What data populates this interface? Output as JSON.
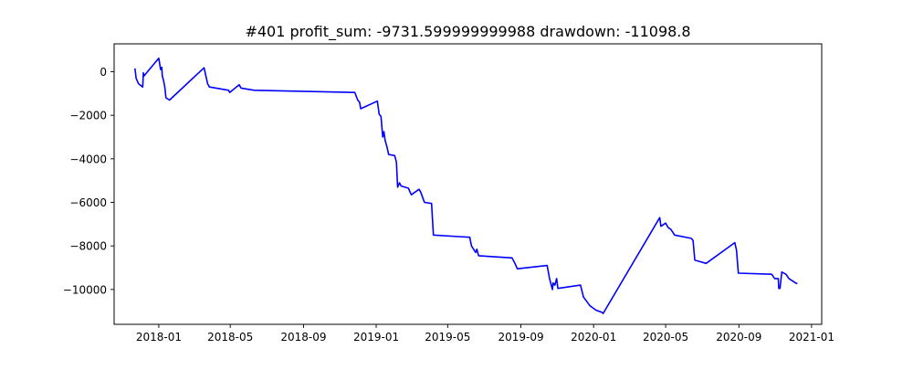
{
  "chart_data": {
    "type": "line",
    "title": "#401   profit_sum: -9731.599999999988 drawdown: -11098.8",
    "xlabel": "",
    "ylabel": "",
    "grid": false,
    "legend": "none",
    "x_ticks": [
      "2018-01",
      "2018-05",
      "2018-09",
      "2019-01",
      "2019-05",
      "2019-09",
      "2020-01",
      "2020-05",
      "2020-09",
      "2021-01"
    ],
    "y_ticks": [
      0,
      -2000,
      -4000,
      -6000,
      -8000,
      -10000
    ],
    "y_tick_labels": [
      "0",
      "−2000",
      "−4000",
      "−6000",
      "−8000",
      "−10000"
    ],
    "xlim": [
      "2017-10-18",
      "2021-01-18"
    ],
    "ylim": [
      -11600,
      1280
    ],
    "series": [
      {
        "color": "#0000ff",
        "points": [
          [
            "2017-11-22",
            150
          ],
          [
            "2017-11-24",
            -300
          ],
          [
            "2017-11-28",
            -550
          ],
          [
            "2017-12-05",
            -700
          ],
          [
            "2017-12-06",
            -50
          ],
          [
            "2017-12-07",
            -200
          ],
          [
            "2018-01-01",
            620
          ],
          [
            "2018-01-04",
            100
          ],
          [
            "2018-01-06",
            200
          ],
          [
            "2018-01-07",
            -200
          ],
          [
            "2018-01-09",
            -400
          ],
          [
            "2018-01-11",
            -700
          ],
          [
            "2018-01-13",
            -1200
          ],
          [
            "2018-01-19",
            -1300
          ],
          [
            "2018-03-18",
            180
          ],
          [
            "2018-03-24",
            -550
          ],
          [
            "2018-03-27",
            -700
          ],
          [
            "2018-04-28",
            -850
          ],
          [
            "2018-04-30",
            -950
          ],
          [
            "2018-05-16",
            -600
          ],
          [
            "2018-05-19",
            -750
          ],
          [
            "2018-06-10",
            -850
          ],
          [
            "2018-11-26",
            -950
          ],
          [
            "2018-12-01",
            -1300
          ],
          [
            "2018-12-04",
            -1400
          ],
          [
            "2018-12-06",
            -1700
          ],
          [
            "2019-01-03",
            -1350
          ],
          [
            "2019-01-06",
            -1950
          ],
          [
            "2019-01-09",
            -2050
          ],
          [
            "2019-01-12",
            -3000
          ],
          [
            "2019-01-14",
            -2750
          ],
          [
            "2019-01-16",
            -3150
          ],
          [
            "2019-01-19",
            -3450
          ],
          [
            "2019-01-22",
            -3800
          ],
          [
            "2019-02-01",
            -3850
          ],
          [
            "2019-02-04",
            -4150
          ],
          [
            "2019-02-06",
            -5300
          ],
          [
            "2019-02-09",
            -5100
          ],
          [
            "2019-02-12",
            -5250
          ],
          [
            "2019-02-24",
            -5350
          ],
          [
            "2019-03-01",
            -5650
          ],
          [
            "2019-03-14",
            -5400
          ],
          [
            "2019-03-17",
            -5550
          ],
          [
            "2019-03-23",
            -6000
          ],
          [
            "2019-04-04",
            -6050
          ],
          [
            "2019-04-07",
            -7500
          ],
          [
            "2019-06-07",
            -7600
          ],
          [
            "2019-06-10",
            -8000
          ],
          [
            "2019-06-17",
            -8300
          ],
          [
            "2019-06-19",
            -8150
          ],
          [
            "2019-06-22",
            -8450
          ],
          [
            "2019-08-17",
            -8550
          ],
          [
            "2019-08-22",
            -8800
          ],
          [
            "2019-08-26",
            -9050
          ],
          [
            "2019-10-15",
            -8900
          ],
          [
            "2019-10-19",
            -9500
          ],
          [
            "2019-10-24",
            -10000
          ],
          [
            "2019-10-25",
            -9700
          ],
          [
            "2019-10-28",
            -9800
          ],
          [
            "2019-10-31",
            -9500
          ],
          [
            "2019-11-02",
            -9950
          ],
          [
            "2019-12-10",
            -9800
          ],
          [
            "2019-12-15",
            -10350
          ],
          [
            "2019-12-26",
            -10750
          ],
          [
            "2019-12-31",
            -10850
          ],
          [
            "2020-01-05",
            -10950
          ],
          [
            "2020-01-15",
            -11050
          ],
          [
            "2020-01-17",
            -11100
          ],
          [
            "2020-04-21",
            -6700
          ],
          [
            "2020-04-23",
            -7100
          ],
          [
            "2020-05-01",
            -6950
          ],
          [
            "2020-05-05",
            -7150
          ],
          [
            "2020-05-10",
            -7250
          ],
          [
            "2020-05-16",
            -7500
          ],
          [
            "2020-06-13",
            -7650
          ],
          [
            "2020-06-16",
            -7750
          ],
          [
            "2020-06-19",
            -8650
          ],
          [
            "2020-06-25",
            -8700
          ],
          [
            "2020-07-08",
            -8800
          ],
          [
            "2020-08-25",
            -7850
          ],
          [
            "2020-08-28",
            -8200
          ],
          [
            "2020-08-31",
            -9250
          ],
          [
            "2020-10-26",
            -9300
          ],
          [
            "2020-10-31",
            -9500
          ],
          [
            "2020-11-06",
            -9500
          ],
          [
            "2020-11-07",
            -9950
          ],
          [
            "2020-11-09",
            -9950
          ],
          [
            "2020-11-12",
            -9200
          ],
          [
            "2020-11-19",
            -9300
          ],
          [
            "2020-11-24",
            -9500
          ],
          [
            "2020-12-05",
            -9700
          ],
          [
            "2020-12-08",
            -9731.6
          ]
        ]
      }
    ]
  }
}
